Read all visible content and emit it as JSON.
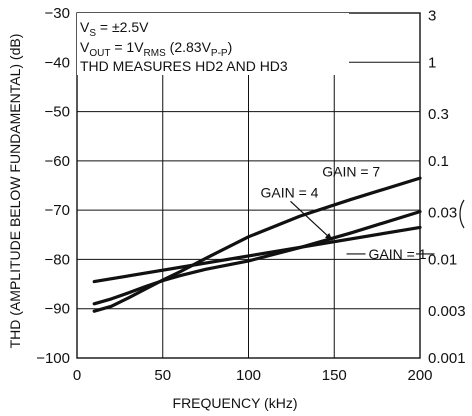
{
  "chart_data": {
    "type": "line",
    "xlabel": "FREQUENCY (kHz)",
    "ylabel": "THD (AMPLITUDE BELOW FUNDAMENTAL) (dB)",
    "y2label": "",
    "xlim": [
      0,
      200
    ],
    "ylim": [
      -100,
      -30
    ],
    "x_ticks": [
      0,
      50,
      100,
      150,
      200
    ],
    "y_ticks": [
      -100,
      -90,
      -80,
      -70,
      -60,
      -50,
      -40,
      -30
    ],
    "x_tick_labels": [
      "0",
      "50",
      "100",
      "150",
      "200"
    ],
    "y_tick_labels": [
      "−100",
      "−90",
      "−80",
      "−70",
      "−60",
      "−50",
      "−40",
      "−30"
    ],
    "y2_ticks": [
      {
        "label": "3",
        "db": -30.5
      },
      {
        "label": "1",
        "db": -40
      },
      {
        "label": "0.3",
        "db": -50.5
      },
      {
        "label": "0.1",
        "db": -60
      },
      {
        "label": "0.03",
        "db": -70.5
      },
      {
        "label": "0.01",
        "db": -80
      },
      {
        "label": "0.003",
        "db": -90.5
      },
      {
        "label": "0.001",
        "db": -100
      }
    ],
    "grid": true,
    "conditions": {
      "line1": {
        "prefix": "V",
        "sub": "S",
        "rest": " = ±2.5V"
      },
      "line2": {
        "prefix": "V",
        "sub": "OUT",
        "mid": " = 1V",
        "sub2": "RMS",
        "rest": " (2.83V",
        "sub3": "P-P",
        "end": ")"
      },
      "line3": "THD MEASURES HD2 AND HD3"
    },
    "series": [
      {
        "name": "GAIN = 1",
        "x": [
          10,
          200
        ],
        "y": [
          -84.5,
          -73.5
        ]
      },
      {
        "name": "GAIN = 4",
        "x": [
          10,
          20,
          30,
          40,
          50,
          60,
          75,
          100,
          130,
          160,
          200
        ],
        "y": [
          -89,
          -88,
          -86.8,
          -85.5,
          -84.3,
          -83.3,
          -82,
          -80.3,
          -77.6,
          -74.6,
          -70.3
        ]
      },
      {
        "name": "GAIN = 7",
        "x": [
          10,
          20,
          30,
          40,
          50,
          60,
          75,
          100,
          130,
          160,
          200
        ],
        "y": [
          -90.5,
          -89.5,
          -87.8,
          -86,
          -84.2,
          -82.5,
          -79.8,
          -75.4,
          -71.2,
          -67.8,
          -63.5
        ]
      }
    ],
    "annotations": [
      {
        "text": "GAIN = 7",
        "x": 143,
        "y": -63.2
      },
      {
        "text": "GAIN = 4",
        "x": 107,
        "y": -67.4
      },
      {
        "text": "GAIN = 1",
        "x": 170,
        "y": -79.9
      }
    ]
  }
}
